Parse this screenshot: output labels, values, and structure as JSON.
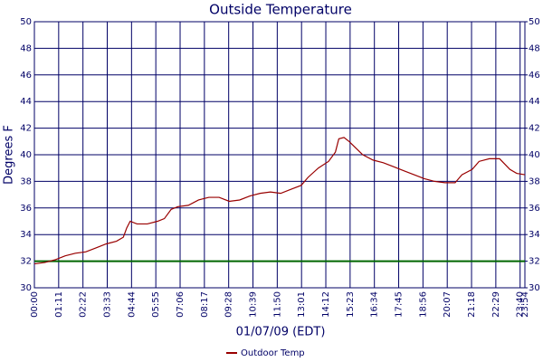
{
  "chart_data": {
    "type": "line",
    "title": "Outside Temperature",
    "xlabel": "01/07/09 (EDT)",
    "ylabel": "Degrees F",
    "x": [
      0,
      30,
      60,
      90,
      120,
      150,
      180,
      210,
      240,
      260,
      270,
      280,
      300,
      330,
      360,
      380,
      400,
      420,
      450,
      480,
      510,
      540,
      570,
      600,
      630,
      660,
      690,
      720,
      750,
      780,
      800,
      830,
      860,
      880,
      890,
      905,
      920,
      940,
      960,
      990,
      1020,
      1050,
      1080,
      1110,
      1140,
      1170,
      1200,
      1230,
      1250,
      1280,
      1300,
      1330,
      1360,
      1390,
      1410,
      1434
    ],
    "series": [
      {
        "name": "Outdoor Temp",
        "color": "#990000",
        "values": [
          31.8,
          31.9,
          32.1,
          32.4,
          32.6,
          32.7,
          33.0,
          33.3,
          33.5,
          33.8,
          34.5,
          35.0,
          34.8,
          34.8,
          35.0,
          35.2,
          35.9,
          36.1,
          36.2,
          36.6,
          36.8,
          36.8,
          36.5,
          36.6,
          36.9,
          37.1,
          37.2,
          37.1,
          37.4,
          37.7,
          38.3,
          39.0,
          39.5,
          40.2,
          41.2,
          41.3,
          41.0,
          40.5,
          40.0,
          39.6,
          39.4,
          39.1,
          38.8,
          38.5,
          38.2,
          38.0,
          37.9,
          37.9,
          38.5,
          38.9,
          39.5,
          39.7,
          39.7,
          38.9,
          38.6,
          38.5
        ]
      }
    ],
    "reference_line": {
      "value": 32,
      "color": "#006600"
    },
    "xlim": [
      0,
      1434
    ],
    "xticks": [
      {
        "value": 0,
        "label": "00:00"
      },
      {
        "value": 71,
        "label": "01:11"
      },
      {
        "value": 142,
        "label": "02:22"
      },
      {
        "value": 213,
        "label": "03:33"
      },
      {
        "value": 284,
        "label": "04:44"
      },
      {
        "value": 355,
        "label": "05:55"
      },
      {
        "value": 426,
        "label": "07:06"
      },
      {
        "value": 497,
        "label": "08:17"
      },
      {
        "value": 568,
        "label": "09:28"
      },
      {
        "value": 639,
        "label": "10:39"
      },
      {
        "value": 710,
        "label": "11:50"
      },
      {
        "value": 781,
        "label": "13:01"
      },
      {
        "value": 852,
        "label": "14:12"
      },
      {
        "value": 923,
        "label": "15:23"
      },
      {
        "value": 994,
        "label": "16:34"
      },
      {
        "value": 1065,
        "label": "17:45"
      },
      {
        "value": 1136,
        "label": "18:56"
      },
      {
        "value": 1207,
        "label": "20:07"
      },
      {
        "value": 1278,
        "label": "21:18"
      },
      {
        "value": 1349,
        "label": "22:29"
      },
      {
        "value": 1420,
        "label": "23:40"
      },
      {
        "value": 1434,
        "label": "23:54"
      }
    ],
    "ylim": [
      30,
      50
    ],
    "yticks": [
      30,
      32,
      34,
      36,
      38,
      40,
      42,
      44,
      46,
      48,
      50
    ],
    "y2lim": [
      30,
      50
    ],
    "y2ticks": [
      30,
      32,
      34,
      36,
      38,
      40,
      42,
      44,
      46,
      48,
      50
    ],
    "grid": true,
    "grid_color": "#000066",
    "legend": "bottom"
  }
}
